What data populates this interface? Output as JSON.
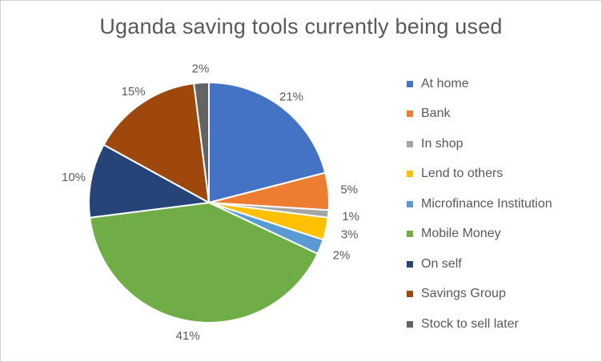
{
  "chart_data": {
    "type": "pie",
    "title": "Uganda saving tools currently being used",
    "categories": [
      "At home",
      "Bank",
      "In shop",
      "Lend to others",
      "Microfinance Institution",
      "Mobile Money",
      "On self",
      "Savings Group",
      "Stock to sell later"
    ],
    "values": [
      21,
      5,
      1,
      3,
      2,
      41,
      10,
      15,
      2
    ],
    "labels": [
      "21%",
      "5%",
      "1%",
      "3%",
      "2%",
      "41%",
      "10%",
      "15%",
      "2%"
    ],
    "colors": [
      "#4472C4",
      "#ED7D31",
      "#A5A5A5",
      "#FFC000",
      "#5B9BD5",
      "#70AD47",
      "#264478",
      "#9E480E",
      "#636363"
    ],
    "legend_position": "right"
  }
}
